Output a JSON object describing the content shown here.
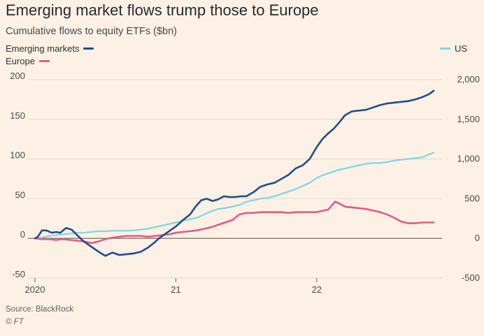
{
  "title": "Emerging market flows trump those to Europe",
  "subtitle": "Cumulative flows to equity ETFs ($bn)",
  "source": "Source: BlackRock",
  "copyright": "© FT",
  "colors": {
    "background": "#fdf1e5",
    "emerging_markets": "#1f4e8f",
    "europe": "#e45b84",
    "us": "#7fd6e3",
    "grid": "#e4d8cc",
    "zero_line": "#66605c"
  },
  "chart_data": {
    "type": "line",
    "title": "Emerging market flows trump those to Europe",
    "subtitle": "Cumulative flows to equity ETFs ($bn)",
    "x_ticks": [
      {
        "label": "2020",
        "x": 2020.0
      },
      {
        "label": "21",
        "x": 2021.0
      },
      {
        "label": "22",
        "x": 2022.0
      }
    ],
    "xlim": [
      2020.0,
      2022.83
    ],
    "left_axis": {
      "ylim": [
        -50,
        200
      ],
      "ticks": [
        {
          "value": -50,
          "label": "-50"
        },
        {
          "value": 0,
          "label": "0"
        },
        {
          "value": 50,
          "label": "50"
        },
        {
          "value": 100,
          "label": "100"
        },
        {
          "value": 150,
          "label": "150"
        },
        {
          "value": 200,
          "label": "200"
        }
      ]
    },
    "right_axis": {
      "ylim": [
        -500,
        2000
      ],
      "ticks": [
        {
          "value": -500,
          "label": "-500"
        },
        {
          "value": 0,
          "label": "0"
        },
        {
          "value": 500,
          "label": "500"
        },
        {
          "value": 1000,
          "label": "1,000"
        },
        {
          "value": 1500,
          "label": "1,500"
        },
        {
          "value": 2000,
          "label": "2,000"
        }
      ]
    },
    "grid": true,
    "legend": [
      {
        "name": "Emerging markets",
        "placement": "top-left",
        "axis": "left"
      },
      {
        "name": "Europe",
        "placement": "top-left",
        "axis": "left"
      },
      {
        "name": "US",
        "placement": "top-right",
        "axis": "right"
      }
    ],
    "series": [
      {
        "name": "Emerging markets",
        "axis": "left",
        "color": "#1f4e8f",
        "x": [
          2020.0,
          2020.02,
          2020.05,
          2020.08,
          2020.12,
          2020.15,
          2020.18,
          2020.22,
          2020.26,
          2020.3,
          2020.34,
          2020.38,
          2020.42,
          2020.46,
          2020.5,
          2020.55,
          2020.6,
          2020.65,
          2020.7,
          2020.75,
          2020.8,
          2020.85,
          2020.88,
          2020.92,
          2020.96,
          2021.0,
          2021.05,
          2021.1,
          2021.14,
          2021.18,
          2021.22,
          2021.26,
          2021.3,
          2021.34,
          2021.38,
          2021.42,
          2021.46,
          2021.5,
          2021.55,
          2021.6,
          2021.65,
          2021.7,
          2021.75,
          2021.8,
          2021.85,
          2021.9,
          2021.95,
          2022.0,
          2022.04,
          2022.08,
          2022.12,
          2022.16,
          2022.2,
          2022.25,
          2022.3,
          2022.35,
          2022.4,
          2022.45,
          2022.5,
          2022.55,
          2022.6,
          2022.65,
          2022.7,
          2022.75,
          2022.8,
          2022.83
        ],
        "values": [
          0,
          2,
          10,
          10,
          7,
          8,
          7,
          13,
          11,
          4,
          -3,
          -8,
          -13,
          -18,
          -22,
          -18,
          -21,
          -20,
          -19,
          -17,
          -12,
          -5,
          0,
          5,
          10,
          15,
          23,
          30,
          40,
          48,
          50,
          47,
          49,
          53,
          52,
          52,
          53,
          53,
          58,
          65,
          68,
          70,
          75,
          80,
          88,
          92,
          100,
          115,
          125,
          132,
          138,
          146,
          155,
          160,
          161,
          162,
          165,
          168,
          170,
          171,
          172,
          173,
          175,
          178,
          182,
          186
        ]
      },
      {
        "name": "Europe",
        "axis": "left",
        "color": "#e45b84",
        "x": [
          2020.0,
          2020.05,
          2020.1,
          2020.15,
          2020.2,
          2020.25,
          2020.3,
          2020.35,
          2020.4,
          2020.45,
          2020.5,
          2020.55,
          2020.6,
          2020.65,
          2020.7,
          2020.75,
          2020.8,
          2020.85,
          2020.9,
          2020.95,
          2021.0,
          2021.05,
          2021.1,
          2021.15,
          2021.2,
          2021.25,
          2021.3,
          2021.35,
          2021.4,
          2021.45,
          2021.5,
          2021.55,
          2021.6,
          2021.65,
          2021.7,
          2021.75,
          2021.8,
          2021.85,
          2021.9,
          2021.95,
          2022.0,
          2022.05,
          2022.08,
          2022.1,
          2022.13,
          2022.16,
          2022.2,
          2022.25,
          2022.3,
          2022.35,
          2022.4,
          2022.45,
          2022.5,
          2022.55,
          2022.6,
          2022.65,
          2022.7,
          2022.75,
          2022.8,
          2022.83
        ],
        "values": [
          0,
          -1,
          -1,
          -2,
          -1,
          -2,
          -3,
          -4,
          -6,
          -4,
          -1,
          1,
          2,
          3,
          3,
          3,
          2,
          3,
          4,
          5,
          7,
          8,
          9,
          10,
          12,
          14,
          17,
          20,
          23,
          30,
          32,
          32,
          33,
          33,
          33,
          33,
          32,
          33,
          33,
          33,
          33,
          35,
          36,
          40,
          46,
          44,
          40,
          39,
          38,
          37,
          35,
          33,
          30,
          26,
          21,
          19,
          19,
          20,
          20,
          20
        ]
      },
      {
        "name": "US",
        "axis": "right",
        "color": "#7fd6e3",
        "x": [
          2020.0,
          2020.05,
          2020.1,
          2020.15,
          2020.2,
          2020.25,
          2020.3,
          2020.35,
          2020.4,
          2020.45,
          2020.5,
          2020.55,
          2020.6,
          2020.65,
          2020.7,
          2020.75,
          2020.8,
          2020.85,
          2020.9,
          2020.95,
          2021.0,
          2021.05,
          2021.1,
          2021.15,
          2021.2,
          2021.25,
          2021.3,
          2021.35,
          2021.4,
          2021.45,
          2021.5,
          2021.55,
          2021.6,
          2021.65,
          2021.7,
          2021.75,
          2021.8,
          2021.85,
          2021.9,
          2021.95,
          2022.0,
          2022.05,
          2022.1,
          2022.15,
          2022.2,
          2022.25,
          2022.3,
          2022.35,
          2022.4,
          2022.45,
          2022.5,
          2022.55,
          2022.6,
          2022.65,
          2022.7,
          2022.75,
          2022.8,
          2022.83
        ],
        "values": [
          0,
          10,
          30,
          40,
          50,
          60,
          70,
          70,
          80,
          90,
          90,
          95,
          95,
          95,
          100,
          110,
          120,
          140,
          160,
          180,
          200,
          220,
          240,
          260,
          300,
          340,
          370,
          380,
          400,
          420,
          460,
          480,
          500,
          510,
          530,
          560,
          590,
          620,
          660,
          700,
          760,
          800,
          830,
          860,
          880,
          900,
          920,
          940,
          950,
          950,
          960,
          980,
          990,
          1000,
          1010,
          1020,
          1060,
          1080
        ]
      }
    ]
  }
}
